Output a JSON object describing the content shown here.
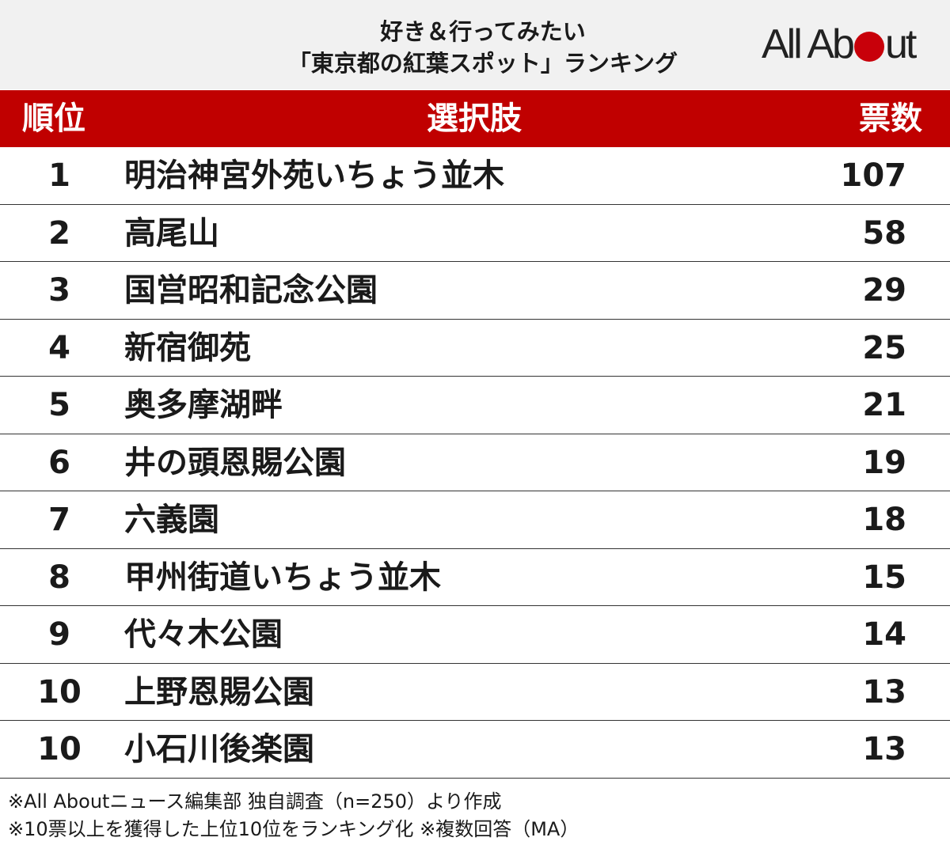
{
  "header": {
    "title_line1": "好き＆行ってみたい",
    "title_line2": "「東京都の紅葉スポット」ランキング",
    "logo_text_before": "All Ab",
    "logo_text_after": "ut",
    "logo_dot_color": "#c8000a"
  },
  "table_header": {
    "rank": "順位",
    "choice": "選択肢",
    "votes": "票数",
    "color": "#c00000"
  },
  "chart_data": {
    "type": "table",
    "title": "好き＆行ってみたい「東京都の紅葉スポット」ランキング",
    "columns": [
      "順位",
      "選択肢",
      "票数"
    ],
    "rows": [
      {
        "rank": "1",
        "name": "明治神宮外苑いちょう並木",
        "votes": "107"
      },
      {
        "rank": "2",
        "name": "高尾山",
        "votes": "58"
      },
      {
        "rank": "3",
        "name": "国営昭和記念公園",
        "votes": "29"
      },
      {
        "rank": "4",
        "name": "新宿御苑",
        "votes": "25"
      },
      {
        "rank": "5",
        "name": "奥多摩湖畔",
        "votes": "21"
      },
      {
        "rank": "6",
        "name": "井の頭恩賜公園",
        "votes": "19"
      },
      {
        "rank": "7",
        "name": "六義園",
        "votes": "18"
      },
      {
        "rank": "8",
        "name": "甲州街道いちょう並木",
        "votes": "15"
      },
      {
        "rank": "9",
        "name": "代々木公園",
        "votes": "14"
      },
      {
        "rank": "10",
        "name": "上野恩賜公園",
        "votes": "13"
      },
      {
        "rank": "10",
        "name": "小石川後楽園",
        "votes": "13"
      }
    ]
  },
  "footnotes": {
    "line1": "※All Aboutニュース編集部 独自調査（n=250）より作成",
    "line2": "※10票以上を獲得した上位10位をランキング化 ※複数回答（MA）"
  }
}
